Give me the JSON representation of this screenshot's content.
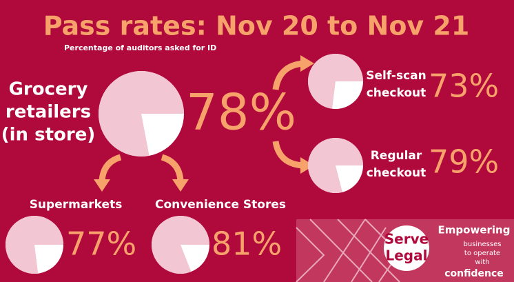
{
  "title": "Pass rates: Nov 20 to Nov 21",
  "subtitle": "Percentage of auditors asked for ID",
  "chart_data": [
    {
      "type": "pie",
      "label": [
        "Grocery",
        "retailers",
        "(in store)"
      ],
      "values": [
        78
      ],
      "value_labels": [
        "78%"
      ],
      "color": "#f2c6d2"
    },
    {
      "type": "pie",
      "label": [
        "Self-scan",
        "checkout"
      ],
      "values": [
        73
      ],
      "value_labels": [
        "73%"
      ],
      "color": "#f2c6d2"
    },
    {
      "type": "pie",
      "label": [
        "Regular",
        "checkout"
      ],
      "values": [
        79
      ],
      "value_labels": [
        "79%"
      ],
      "color": "#f2c6d2"
    },
    {
      "type": "pie",
      "label": [
        "Supermarkets"
      ],
      "values": [
        77
      ],
      "value_labels": [
        "77%"
      ],
      "color": "#f2c6d2"
    },
    {
      "type": "pie",
      "label": [
        "Convenience Stores"
      ],
      "values": [
        81
      ],
      "value_labels": [
        "81%"
      ],
      "color": "#f2c6d2"
    }
  ],
  "logo": {
    "name": [
      "Serve",
      "Legal"
    ],
    "tagline": [
      "Empowering",
      "businesses",
      "to operate",
      "with",
      "confidence"
    ]
  }
}
